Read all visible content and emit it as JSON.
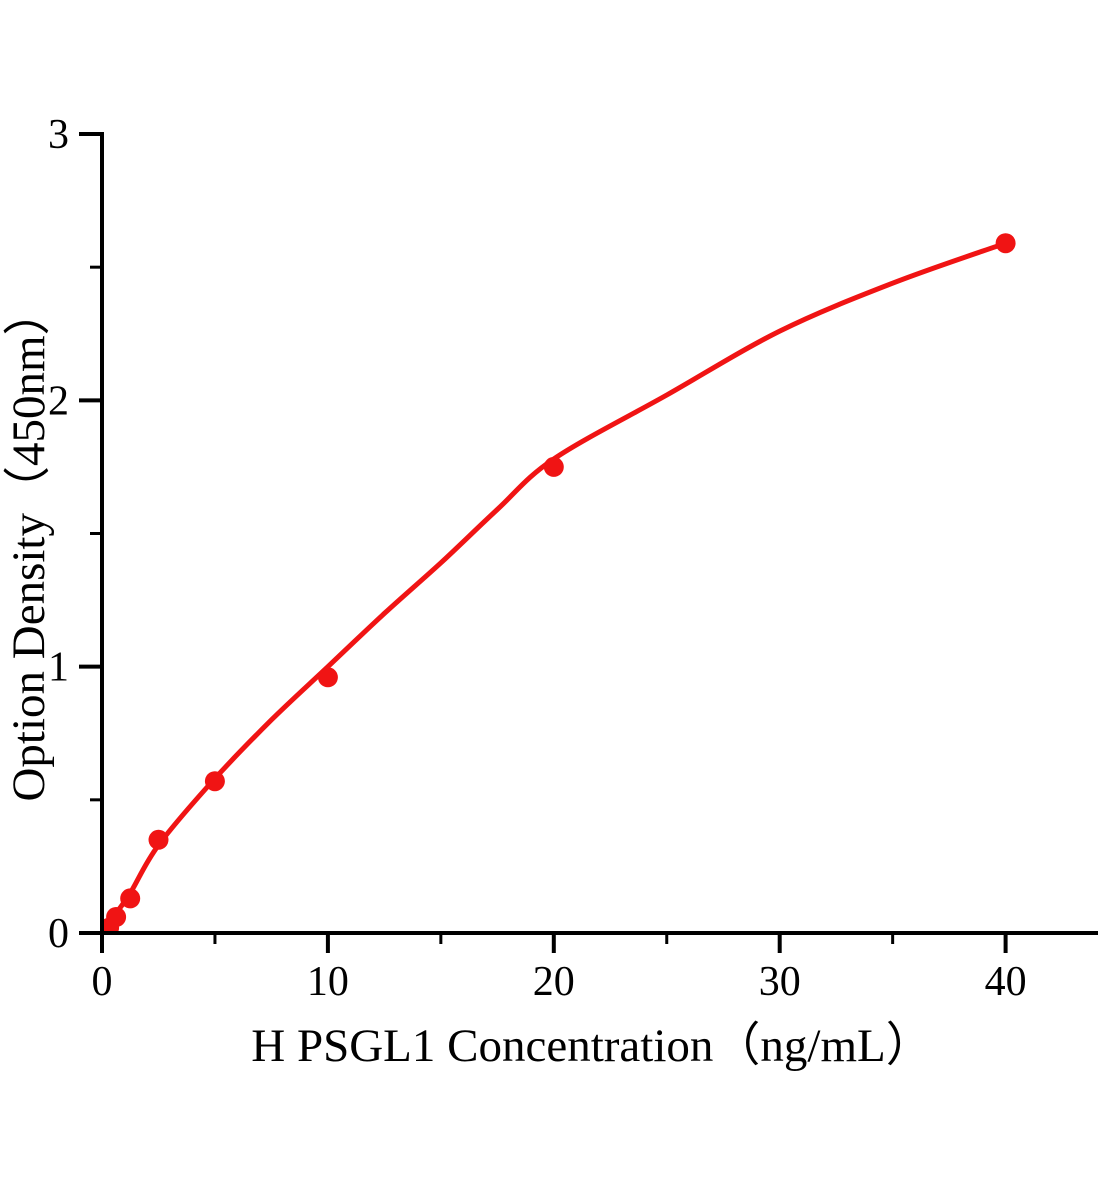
{
  "figure": {
    "background_color": "#ffffff",
    "axis_color": "#000000",
    "series_color": "#f01414"
  },
  "chart_data": {
    "type": "scatter",
    "title": "",
    "xlabel": "H PSGL1 Concentration（ng/mL）",
    "ylabel": "Option Density（450nm）",
    "xlim": [
      0,
      44.1
    ],
    "ylim": [
      0,
      3
    ],
    "x_ticks": [
      0,
      10,
      20,
      30,
      40
    ],
    "x_minor_ticks": [
      5,
      15,
      25,
      35
    ],
    "y_ticks": [
      0,
      1,
      2,
      3
    ],
    "y_minor_ticks": [
      0.5,
      1.5,
      2.5
    ],
    "grid": false,
    "legend_position": "none",
    "series": [
      {
        "name": "standard-points",
        "type": "scatter",
        "marker": "circle",
        "color": "#f01414",
        "x": [
          0.3125,
          0.625,
          1.25,
          2.5,
          5,
          10,
          20,
          40
        ],
        "y": [
          0.02,
          0.06,
          0.13,
          0.35,
          0.57,
          0.96,
          1.75,
          2.59
        ]
      },
      {
        "name": "fit-curve",
        "type": "line",
        "color": "#f01414",
        "x": [
          0,
          0.5,
          1.25,
          2.5,
          5,
          7.5,
          10,
          12.5,
          15,
          17.5,
          20,
          25,
          30,
          35,
          40
        ],
        "y": [
          0,
          0.06,
          0.15,
          0.33,
          0.58,
          0.8,
          1.0,
          1.2,
          1.39,
          1.59,
          1.78,
          2.02,
          2.26,
          2.44,
          2.59
        ]
      }
    ]
  }
}
